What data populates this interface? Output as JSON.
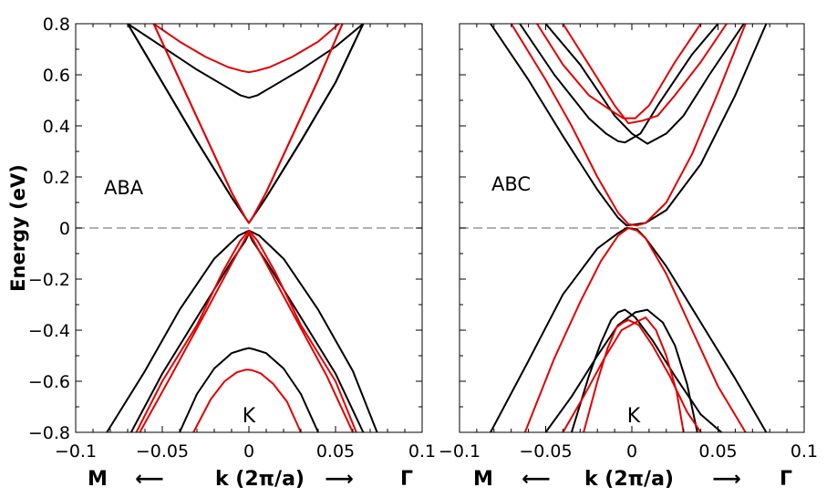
{
  "figure": {
    "ylabel": "Energy (eV)",
    "xlabel": "k (2π/a)",
    "left_direction_label": "M",
    "right_direction_label": "Γ",
    "left_arrow": "⟵",
    "right_arrow": "⟶",
    "x_tick_labels": [
      "−0.1",
      "−0.05",
      "0",
      "0.05",
      "0.1"
    ],
    "y_tick_labels": [
      "0.8",
      "0.6",
      "0.4",
      "0.2",
      "0",
      "−0.2",
      "−0.4",
      "−0.6",
      "−0.8"
    ]
  },
  "colors": {
    "series_black": "#000000",
    "series_red": "#e00000",
    "fermi_line": "#999999"
  },
  "chart_data": [
    {
      "type": "line",
      "title": "ABA",
      "point_label": "K",
      "xlabel": "k (2π/a)",
      "ylabel": "Energy (eV)",
      "xlim": [
        -0.1,
        0.1
      ],
      "ylim": [
        -0.8,
        0.8
      ],
      "x_ticks": [
        -0.1,
        -0.05,
        0,
        0.05,
        0.1
      ],
      "y_ticks": [
        0.8,
        0.6,
        0.4,
        0.2,
        0,
        -0.2,
        -0.4,
        -0.6,
        -0.8
      ],
      "reference_line": {
        "y": 0,
        "style": "dashed"
      },
      "series": [
        {
          "name": "black cond 1",
          "color": "black",
          "x": [
            -0.07,
            -0.05,
            -0.03,
            -0.015,
            -0.005,
            0,
            0.005,
            0.015,
            0.03,
            0.05,
            0.066
          ],
          "y": [
            0.8,
            0.71,
            0.62,
            0.56,
            0.52,
            0.51,
            0.52,
            0.56,
            0.62,
            0.71,
            0.8
          ]
        },
        {
          "name": "black cond 2",
          "color": "black",
          "x": [
            -0.07,
            -0.05,
            -0.03,
            -0.01,
            -0.002,
            0,
            0.002,
            0.01,
            0.03,
            0.05,
            0.066
          ],
          "y": [
            0.8,
            0.57,
            0.34,
            0.12,
            0.04,
            0.02,
            0.04,
            0.12,
            0.34,
            0.57,
            0.8
          ]
        },
        {
          "name": "black cond 3",
          "color": "black",
          "x": [
            -0.07,
            -0.05,
            -0.03,
            -0.01,
            -0.002,
            0,
            0.002,
            0.01,
            0.03,
            0.05,
            0.066
          ],
          "y": [
            0.8,
            0.57,
            0.34,
            0.12,
            0.04,
            0.02,
            0.04,
            0.12,
            0.34,
            0.57,
            0.8
          ]
        },
        {
          "name": "black val 1",
          "color": "black",
          "x": [
            -0.082,
            -0.06,
            -0.04,
            -0.02,
            -0.006,
            0,
            0.006,
            0.02,
            0.04,
            0.06,
            0.074
          ],
          "y": [
            -0.8,
            -0.56,
            -0.32,
            -0.12,
            -0.03,
            -0.01,
            -0.03,
            -0.12,
            -0.32,
            -0.56,
            -0.8
          ]
        },
        {
          "name": "black val 2",
          "color": "black",
          "x": [
            -0.068,
            -0.05,
            -0.03,
            -0.01,
            -0.002,
            0,
            0.002,
            0.01,
            0.03,
            0.05,
            0.066
          ],
          "y": [
            -0.8,
            -0.57,
            -0.35,
            -0.13,
            -0.05,
            -0.02,
            -0.05,
            -0.13,
            -0.35,
            -0.57,
            -0.8
          ]
        },
        {
          "name": "black val 3",
          "color": "black",
          "x": [
            -0.04,
            -0.03,
            -0.02,
            -0.01,
            -0.003,
            0,
            0.003,
            0.01,
            0.02,
            0.03,
            0.04
          ],
          "y": [
            -0.8,
            -0.65,
            -0.55,
            -0.49,
            -0.475,
            -0.47,
            -0.475,
            -0.49,
            -0.55,
            -0.65,
            -0.8
          ]
        },
        {
          "name": "red cond 1",
          "color": "red",
          "x": [
            -0.055,
            -0.04,
            -0.025,
            -0.012,
            -0.004,
            0,
            0.004,
            0.012,
            0.025,
            0.04,
            0.052
          ],
          "y": [
            0.8,
            0.73,
            0.67,
            0.63,
            0.615,
            0.61,
            0.615,
            0.63,
            0.67,
            0.73,
            0.8
          ]
        },
        {
          "name": "red cond 2",
          "color": "red",
          "x": [
            -0.055,
            -0.04,
            -0.025,
            -0.01,
            -0.002,
            0,
            0.002,
            0.01,
            0.025,
            0.04,
            0.054
          ],
          "y": [
            0.8,
            0.58,
            0.36,
            0.14,
            0.04,
            0.02,
            0.04,
            0.14,
            0.36,
            0.58,
            0.8
          ]
        },
        {
          "name": "red cond 3",
          "color": "red",
          "x": [
            -0.055,
            -0.04,
            -0.025,
            -0.01,
            -0.002,
            0,
            0.002,
            0.01,
            0.025,
            0.04,
            0.054
          ],
          "y": [
            0.8,
            0.58,
            0.36,
            0.14,
            0.04,
            0.02,
            0.04,
            0.14,
            0.36,
            0.58,
            0.8
          ]
        },
        {
          "name": "red val 1",
          "color": "red",
          "x": [
            -0.065,
            -0.05,
            -0.03,
            -0.015,
            -0.005,
            0,
            0.005,
            0.015,
            0.03,
            0.05,
            0.062
          ],
          "y": [
            -0.8,
            -0.6,
            -0.38,
            -0.17,
            -0.05,
            -0.01,
            -0.05,
            -0.17,
            -0.38,
            -0.6,
            -0.8
          ]
        },
        {
          "name": "red val 2",
          "color": "red",
          "x": [
            -0.063,
            -0.045,
            -0.025,
            -0.01,
            -0.002,
            0,
            0.002,
            0.01,
            0.025,
            0.045,
            0.06
          ],
          "y": [
            -0.8,
            -0.58,
            -0.33,
            -0.14,
            -0.04,
            -0.02,
            -0.04,
            -0.14,
            -0.33,
            -0.58,
            -0.8
          ]
        },
        {
          "name": "red val 3",
          "color": "red",
          "x": [
            -0.032,
            -0.022,
            -0.014,
            -0.007,
            -0.002,
            0,
            0.002,
            0.007,
            0.014,
            0.022,
            0.03
          ],
          "y": [
            -0.8,
            -0.67,
            -0.6,
            -0.565,
            -0.555,
            -0.555,
            -0.557,
            -0.57,
            -0.61,
            -0.68,
            -0.8
          ]
        }
      ]
    },
    {
      "type": "line",
      "title": "ABC",
      "point_label": "K",
      "xlabel": "k (2π/a)",
      "ylabel": "",
      "xlim": [
        -0.1,
        0.1
      ],
      "ylim": [
        -0.8,
        0.8
      ],
      "x_ticks": [
        -0.1,
        -0.05,
        0,
        0.05,
        0.1
      ],
      "reference_line": {
        "y": 0,
        "style": "dashed"
      },
      "series": [
        {
          "name": "black cond A",
          "color": "black",
          "x": [
            -0.065,
            -0.045,
            -0.025,
            -0.015,
            -0.008,
            -0.004,
            0.005,
            0.015,
            0.035,
            0.05
          ],
          "y": [
            0.8,
            0.6,
            0.43,
            0.37,
            0.34,
            0.335,
            0.37,
            0.48,
            0.68,
            0.8
          ]
        },
        {
          "name": "black cond B",
          "color": "black",
          "x": [
            -0.05,
            -0.03,
            -0.01,
            0,
            0.009,
            0.02,
            0.03,
            0.045,
            0.065
          ],
          "y": [
            0.8,
            0.64,
            0.44,
            0.37,
            0.33,
            0.37,
            0.44,
            0.6,
            0.8
          ]
        },
        {
          "name": "black cond C",
          "color": "black",
          "x": [
            -0.082,
            -0.06,
            -0.04,
            -0.02,
            -0.008,
            -0.003,
            0.003,
            0.008,
            0.02,
            0.04,
            0.06,
            0.078
          ],
          "y": [
            0.8,
            0.58,
            0.36,
            0.15,
            0.04,
            0.01,
            0.015,
            0.02,
            0.07,
            0.25,
            0.52,
            0.8
          ]
        },
        {
          "name": "black val A",
          "color": "black",
          "x": [
            -0.082,
            -0.06,
            -0.04,
            -0.02,
            -0.008,
            -0.003,
            0.003,
            0.008,
            0.02,
            0.04,
            0.06,
            0.078
          ],
          "y": [
            -0.8,
            -0.52,
            -0.26,
            -0.08,
            -0.02,
            0.0,
            -0.005,
            -0.04,
            -0.15,
            -0.37,
            -0.59,
            -0.8
          ]
        },
        {
          "name": "black val B",
          "color": "black",
          "x": [
            -0.035,
            -0.025,
            -0.018,
            -0.012,
            -0.008,
            -0.004,
            0.002,
            0.012,
            0.025,
            0.04,
            0.052
          ],
          "y": [
            -0.8,
            -0.58,
            -0.45,
            -0.36,
            -0.33,
            -0.32,
            -0.35,
            -0.44,
            -0.58,
            -0.73,
            -0.8
          ]
        },
        {
          "name": "black val C",
          "color": "black",
          "x": [
            -0.05,
            -0.035,
            -0.02,
            -0.008,
            0.002,
            0.009,
            0.018,
            0.025,
            0.032,
            0.038
          ],
          "y": [
            -0.8,
            -0.66,
            -0.5,
            -0.38,
            -0.33,
            -0.32,
            -0.37,
            -0.46,
            -0.61,
            -0.8
          ]
        },
        {
          "name": "red cond A",
          "color": "red",
          "x": [
            -0.055,
            -0.04,
            -0.025,
            -0.012,
            -0.005,
            0.002,
            0.01,
            0.025,
            0.04
          ],
          "y": [
            0.8,
            0.64,
            0.52,
            0.46,
            0.43,
            0.43,
            0.48,
            0.65,
            0.8
          ]
        },
        {
          "name": "red cond B",
          "color": "red",
          "x": [
            -0.04,
            -0.025,
            -0.01,
            -0.002,
            0.006,
            0.015,
            0.025,
            0.04,
            0.055
          ],
          "y": [
            0.8,
            0.64,
            0.48,
            0.41,
            0.42,
            0.44,
            0.52,
            0.65,
            0.8
          ]
        },
        {
          "name": "red cond C",
          "color": "red",
          "x": [
            -0.07,
            -0.05,
            -0.035,
            -0.02,
            -0.008,
            -0.002,
            0.003,
            0.008,
            0.02,
            0.035,
            0.05,
            0.066
          ],
          "y": [
            0.8,
            0.58,
            0.4,
            0.2,
            0.06,
            0.015,
            0.01,
            0.02,
            0.1,
            0.29,
            0.53,
            0.8
          ]
        },
        {
          "name": "red val A",
          "color": "red",
          "x": [
            -0.062,
            -0.045,
            -0.03,
            -0.018,
            -0.008,
            -0.002,
            0.003,
            0.008,
            0.02,
            0.035,
            0.05,
            0.066
          ],
          "y": [
            -0.8,
            -0.51,
            -0.29,
            -0.13,
            -0.03,
            0.0,
            -0.01,
            -0.04,
            -0.18,
            -0.4,
            -0.62,
            -0.8
          ]
        },
        {
          "name": "red val B",
          "color": "red",
          "x": [
            -0.028,
            -0.02,
            -0.014,
            -0.009,
            -0.005,
            -0.002,
            0.004,
            0.012,
            0.022,
            0.032,
            0.04
          ],
          "y": [
            -0.8,
            -0.6,
            -0.47,
            -0.39,
            -0.37,
            -0.36,
            -0.38,
            -0.46,
            -0.58,
            -0.72,
            -0.8
          ]
        },
        {
          "name": "red val C",
          "color": "red",
          "x": [
            -0.04,
            -0.028,
            -0.016,
            -0.006,
            0.002,
            0.008,
            0.014,
            0.02,
            0.026,
            0.03
          ],
          "y": [
            -0.8,
            -0.66,
            -0.51,
            -0.4,
            -0.37,
            -0.35,
            -0.4,
            -0.5,
            -0.64,
            -0.8
          ]
        }
      ]
    }
  ]
}
